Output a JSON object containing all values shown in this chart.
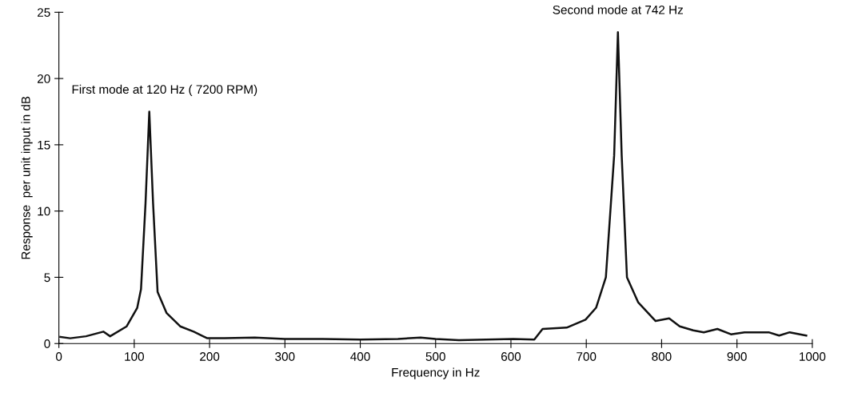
{
  "chart_data": {
    "type": "line",
    "xlabel": "Frequency in Hz",
    "ylabel": "Response  per unit input in dB",
    "x": [
      2,
      15,
      36,
      59,
      68,
      90,
      104,
      109,
      115,
      120,
      125,
      131,
      143,
      161,
      179,
      197,
      220,
      260,
      300,
      350,
      400,
      450,
      480,
      500,
      531,
      567,
      603,
      631,
      642,
      674,
      699,
      713,
      726,
      737,
      742,
      747,
      754,
      769,
      792,
      810,
      824,
      842,
      856,
      874,
      892,
      910,
      942,
      956,
      970,
      992
    ],
    "series": [
      {
        "color": "#111111",
        "values": [
          0.5,
          0.4,
          0.55,
          0.9,
          0.55,
          1.3,
          2.7,
          4.1,
          10.6,
          17.5,
          10.6,
          3.9,
          2.3,
          1.3,
          0.9,
          0.4,
          0.4,
          0.45,
          0.35,
          0.35,
          0.3,
          0.35,
          0.45,
          0.35,
          0.25,
          0.3,
          0.35,
          0.3,
          1.1,
          1.2,
          1.8,
          2.7,
          5.0,
          14.2,
          23.5,
          14.2,
          5.0,
          3.1,
          1.7,
          1.9,
          1.3,
          1.0,
          0.85,
          1.1,
          0.7,
          0.85,
          0.85,
          0.6,
          0.85,
          0.6
        ]
      }
    ],
    "xlim": [
      0,
      1000
    ],
    "xticks": [
      0,
      100,
      200,
      300,
      400,
      500,
      600,
      700,
      800,
      900,
      1000
    ],
    "ylim": [
      0,
      25
    ],
    "yticks": [
      0,
      5,
      10,
      15,
      20,
      25
    ],
    "grid": false,
    "legend": false,
    "marker": "none",
    "line_style": "solid",
    "annotations": [
      {
        "text": "First mode at 120 Hz ( 7200 RPM)",
        "x": 120,
        "y": 17.5
      },
      {
        "text": "Second mode at 742 Hz",
        "x": 742,
        "y": 23.5
      }
    ]
  }
}
